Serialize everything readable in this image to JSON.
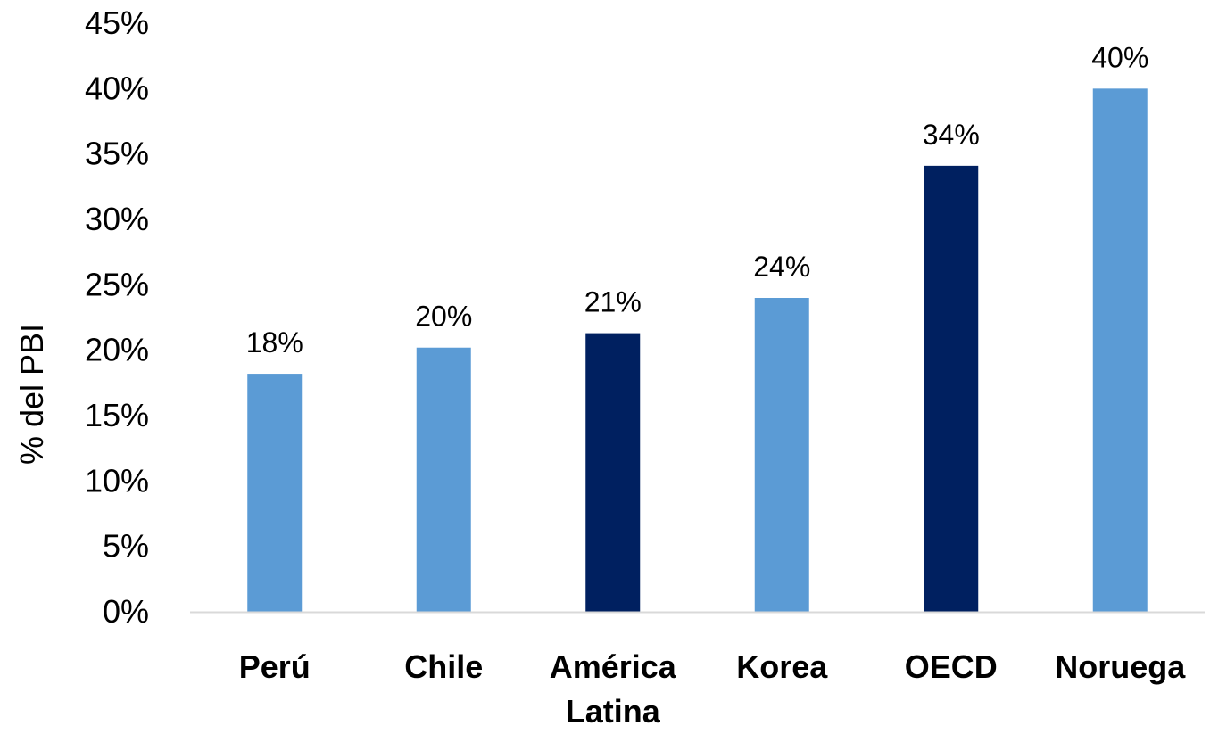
{
  "chart_data": {
    "type": "bar",
    "title": "",
    "xlabel": "",
    "ylabel": "% del PBI",
    "ylim": [
      0,
      45
    ],
    "y_tick_step": 5,
    "y_tick_labels": [
      "0%",
      "5%",
      "10%",
      "15%",
      "20%",
      "25%",
      "30%",
      "35%",
      "40%",
      "45%"
    ],
    "grid": false,
    "legend": "none",
    "categories": [
      [
        "Perú"
      ],
      [
        "Chile"
      ],
      [
        "América",
        "Latina"
      ],
      [
        "Korea"
      ],
      [
        "OECD"
      ],
      [
        "Noruega"
      ]
    ],
    "values": [
      18.2,
      20.2,
      21.3,
      24.0,
      34.1,
      40.0
    ],
    "data_labels": [
      "18%",
      "20%",
      "21%",
      "24%",
      "34%",
      "40%"
    ],
    "bar_colors": [
      "#5b9bd5",
      "#5b9bd5",
      "#002060",
      "#5b9bd5",
      "#002060",
      "#5b9bd5"
    ],
    "axis_color": "#d9d9d9"
  }
}
